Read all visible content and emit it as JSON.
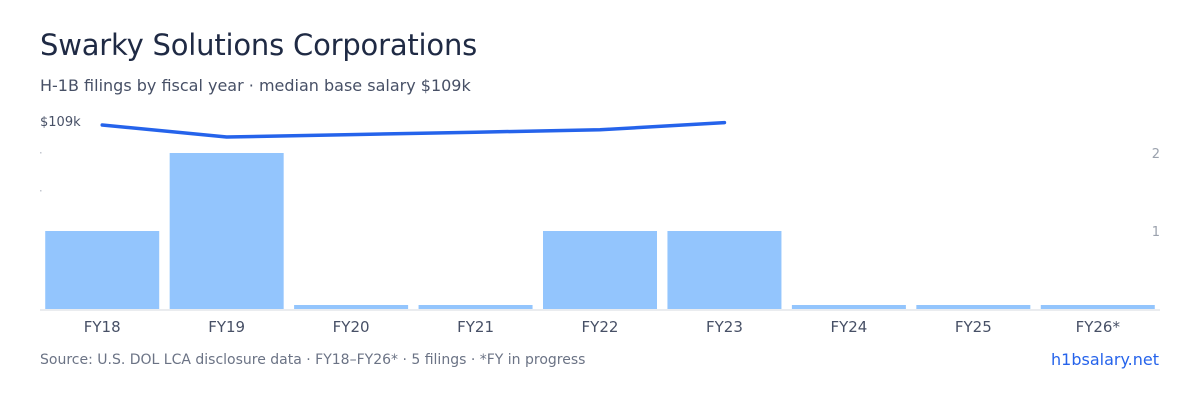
{
  "header": {
    "title": "Swarky Solutions Corporations",
    "subtitle": "H-1B filings by fiscal year · median base salary $109k"
  },
  "footer": {
    "source": "Source: U.S. DOL LCA disclosure data · FY18–FY26* · 5 filings · *FY in progress",
    "brand": "h1bsalary.net"
  },
  "colors": {
    "bar": "#93c5fd",
    "line": "#2563eb",
    "baseline": "#d6d9df",
    "tick_text": "#9aa1ad",
    "axis_text": "#475066"
  },
  "chart_data": {
    "type": "bar",
    "categories": [
      "FY18",
      "FY19",
      "FY20",
      "FY21",
      "FY22",
      "FY23",
      "FY24",
      "FY25",
      "FY26*"
    ],
    "series": [
      {
        "type": "bar",
        "axis": "right",
        "values": [
          1,
          2,
          0,
          0,
          1,
          1,
          0,
          0,
          0
        ]
      },
      {
        "type": "line",
        "axis": "left",
        "values": [
          109,
          108,
          108.2,
          108.4,
          108.6,
          109.2,
          null,
          null,
          null
        ]
      }
    ],
    "left_axis": {
      "label": "$109k"
    },
    "right_axis": {
      "ticks": [
        "2",
        "1"
      ]
    },
    "legend": "none",
    "grid": false
  }
}
